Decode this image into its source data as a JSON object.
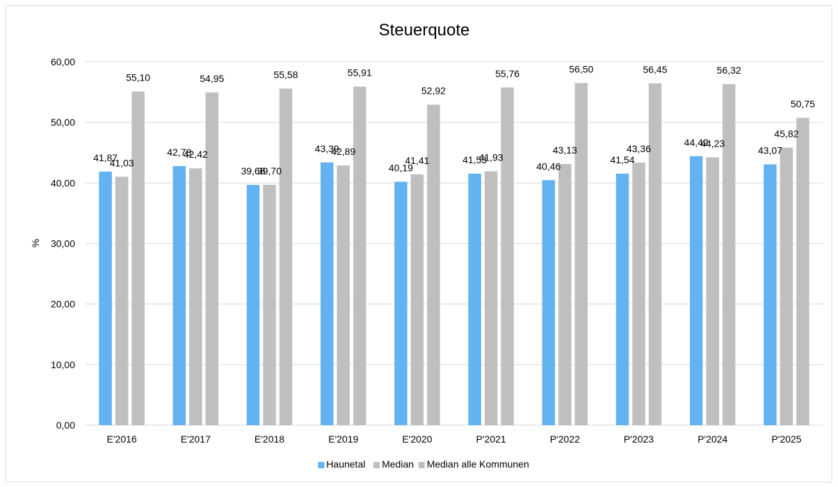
{
  "chart_data": {
    "type": "bar",
    "title": "Steuerquote",
    "xlabel": "",
    "ylabel": "%",
    "ylim": [
      0,
      60
    ],
    "ytick_values": [
      0,
      10,
      20,
      30,
      40,
      50,
      60
    ],
    "ytick_labels": [
      "0,00",
      "10,00",
      "20,00",
      "30,00",
      "40,00",
      "50,00",
      "60,00"
    ],
    "categories": [
      "E'2016",
      "E'2017",
      "E'2018",
      "E'2019",
      "E'2020",
      "P'2021",
      "P'2022",
      "P'2023",
      "P'2024",
      "P'2025"
    ],
    "series": [
      {
        "name": "Haunetal",
        "color": "#63b3f2",
        "values": [
          41.87,
          42.78,
          39.68,
          43.39,
          40.19,
          41.53,
          40.46,
          41.54,
          44.42,
          43.07
        ],
        "labels": [
          "41,87",
          "42,78",
          "39,68",
          "43,39",
          "40,19",
          "41,53",
          "40,46",
          "41,54",
          "44,42",
          "43,07"
        ]
      },
      {
        "name": "Median",
        "color": "#bfbfbf",
        "values": [
          41.03,
          42.42,
          39.7,
          42.89,
          41.41,
          41.93,
          43.13,
          43.36,
          44.23,
          45.82
        ],
        "labels": [
          "41,03",
          "42,42",
          "39,70",
          "42,89",
          "41,41",
          "41,93",
          "43,13",
          "43,36",
          "44,23",
          "45,82"
        ]
      },
      {
        "name": "Median alle Kommunen",
        "color": "#bfbfbf",
        "values": [
          55.1,
          54.95,
          55.58,
          55.91,
          52.92,
          55.76,
          56.5,
          56.45,
          56.32,
          50.75
        ],
        "labels": [
          "55,10",
          "54,95",
          "55,58",
          "55,91",
          "52,92",
          "55,76",
          "56,50",
          "56,45",
          "56,32",
          "50,75"
        ]
      }
    ],
    "grid": true,
    "legend_position": "bottom",
    "border_color": "#d9d9d9",
    "grid_color": "#d9d9d9"
  }
}
